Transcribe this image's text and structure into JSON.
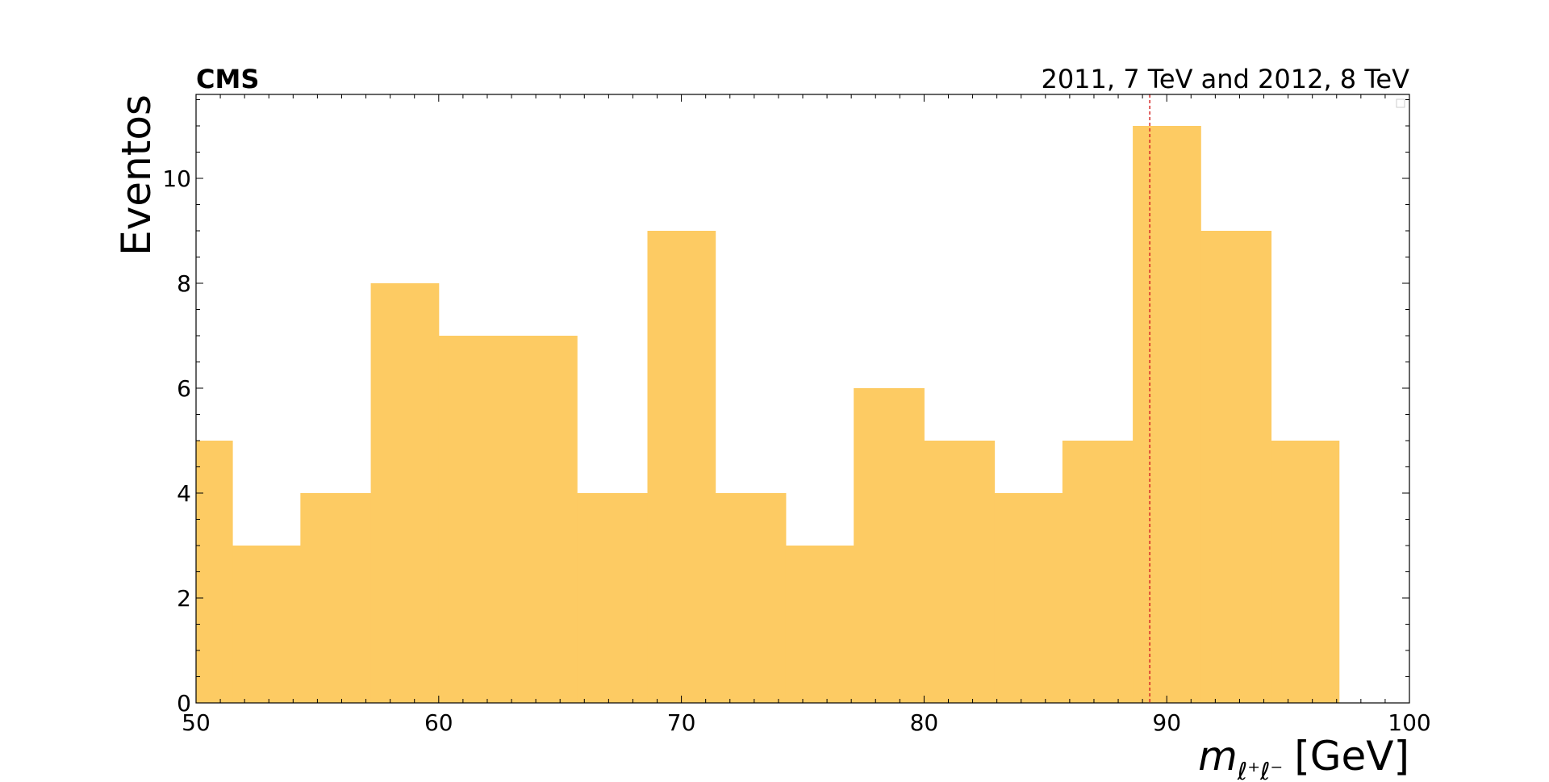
{
  "chart_data": {
    "type": "bar",
    "experiment_label": "CMS",
    "lumi_label": "2011, 7 TeV and 2012, 8 TeV",
    "ylabel": "Eventos",
    "xlabel": "m",
    "xlabel_subscript": "ℓ⁺ℓ⁻",
    "xlabel_unit": "[GeV]",
    "xlim": [
      50,
      100
    ],
    "ylim": [
      0,
      11.6
    ],
    "xticks": [
      50,
      60,
      70,
      80,
      90,
      100
    ],
    "yticks": [
      0,
      2,
      4,
      6,
      8,
      10
    ],
    "bin_edges": [
      48.5,
      51.4,
      54.3,
      57.2,
      60.1,
      63.0,
      65.9,
      68.8,
      71.7,
      74.6,
      77.5,
      80.4,
      83.3,
      86.2,
      89.1,
      92.0,
      94.9,
      97.8
    ],
    "bin_edges_note": "",
    "bins": [
      {
        "lo": 48.5,
        "hi": 51.5,
        "count": 5
      },
      {
        "lo": 51.5,
        "hi": 54.3,
        "count": 3
      },
      {
        "lo": 54.3,
        "hi": 57.2,
        "count": 4
      },
      {
        "lo": 57.2,
        "hi": 60.0,
        "count": 8
      },
      {
        "lo": 60.0,
        "hi": 62.9,
        "count": 7
      },
      {
        "lo": 62.9,
        "hi": 65.7,
        "count": 7
      },
      {
        "lo": 65.7,
        "hi": 68.6,
        "count": 4
      },
      {
        "lo": 68.6,
        "hi": 71.4,
        "count": 9
      },
      {
        "lo": 71.4,
        "hi": 74.3,
        "count": 4
      },
      {
        "lo": 74.3,
        "hi": 77.1,
        "count": 3
      },
      {
        "lo": 77.1,
        "hi": 80.0,
        "count": 6
      },
      {
        "lo": 80.0,
        "hi": 82.9,
        "count": 5
      },
      {
        "lo": 82.9,
        "hi": 85.7,
        "count": 4
      },
      {
        "lo": 85.7,
        "hi": 88.6,
        "count": 5
      },
      {
        "lo": 88.6,
        "hi": 91.4,
        "count": 11
      },
      {
        "lo": 91.4,
        "hi": 94.3,
        "count": 9
      },
      {
        "lo": 94.3,
        "hi": 97.1,
        "count": 5
      }
    ],
    "vline_x": 89.3,
    "grid": false,
    "colors": {
      "bar": "#fdcb63",
      "vline": "#d62728",
      "axes": "#000000"
    }
  }
}
